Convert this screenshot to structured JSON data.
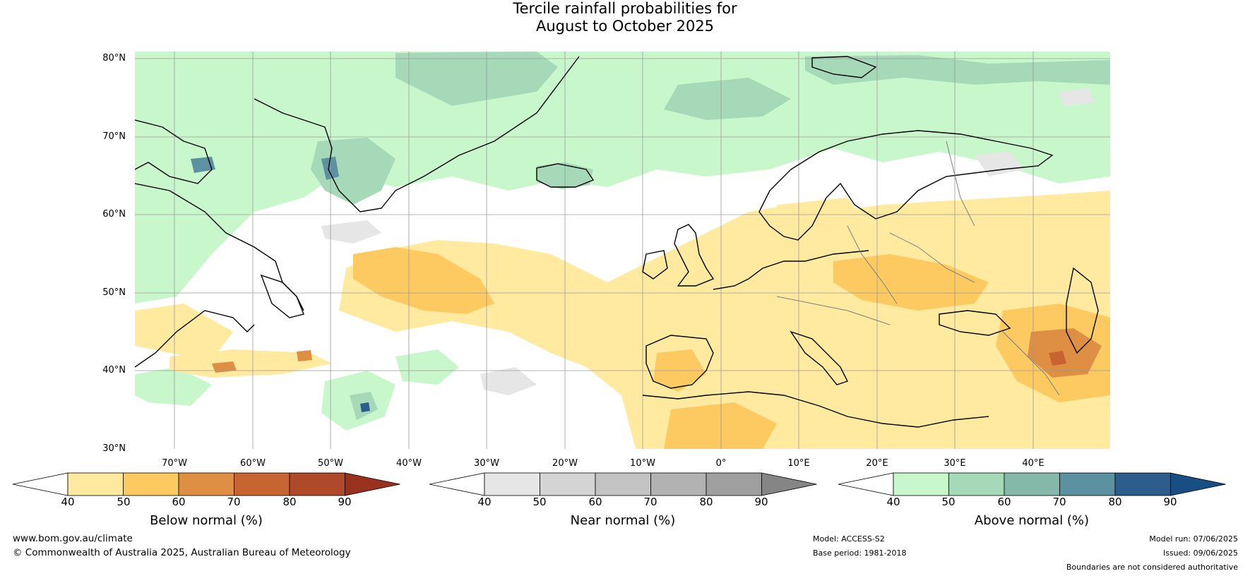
{
  "title": {
    "line1": "Tercile rainfall probabilities for",
    "line2": "August to October 2025"
  },
  "map": {
    "lat_labels": [
      "80°N",
      "70°N",
      "60°N",
      "50°N",
      "40°N",
      "30°N"
    ],
    "lon_labels": [
      "70°W",
      "60°W",
      "50°W",
      "40°W",
      "30°W",
      "20°W",
      "10°W",
      "0°",
      "10°E",
      "20°E",
      "30°E",
      "40°E"
    ],
    "colors": {
      "ocean_background": "#ffffff",
      "gridline": "#9a9a9a",
      "coastline": "#000000",
      "border": "#7f7f7f"
    }
  },
  "colorbars": [
    {
      "title": "Below normal (%)",
      "ticks": [
        "40",
        "50",
        "60",
        "70",
        "80",
        "90"
      ],
      "colors": [
        "#ffffff",
        "#ffeaa0",
        "#fdca62",
        "#de8f44",
        "#c8642f",
        "#b0482a",
        "#98321f"
      ]
    },
    {
      "title": "Near normal (%)",
      "ticks": [
        "40",
        "50",
        "60",
        "70",
        "80",
        "90"
      ],
      "colors": [
        "#ffffff",
        "#e6e6e6",
        "#d4d4d4",
        "#c3c3c3",
        "#b2b2b2",
        "#9f9f9f",
        "#858585"
      ]
    },
    {
      "title": "Above normal (%)",
      "ticks": [
        "40",
        "50",
        "60",
        "70",
        "80",
        "90"
      ],
      "colors": [
        "#ffffff",
        "#c9f7cc",
        "#a5d9b8",
        "#84b9a9",
        "#5b91a0",
        "#2d5d8d",
        "#174f83"
      ]
    }
  ],
  "footer": {
    "website": "www.bom.gov.au/climate",
    "copyright": "© Commonwealth of Australia 2025, Australian Bureau of Meteorology",
    "model": "Model: ACCESS-S2",
    "base_period": "Base period: 1981-2018",
    "model_run": "Model run: 07/06/2025",
    "issued": "Issued: 09/06/2025",
    "disclaimer": "Boundaries are not considered authoritative"
  }
}
